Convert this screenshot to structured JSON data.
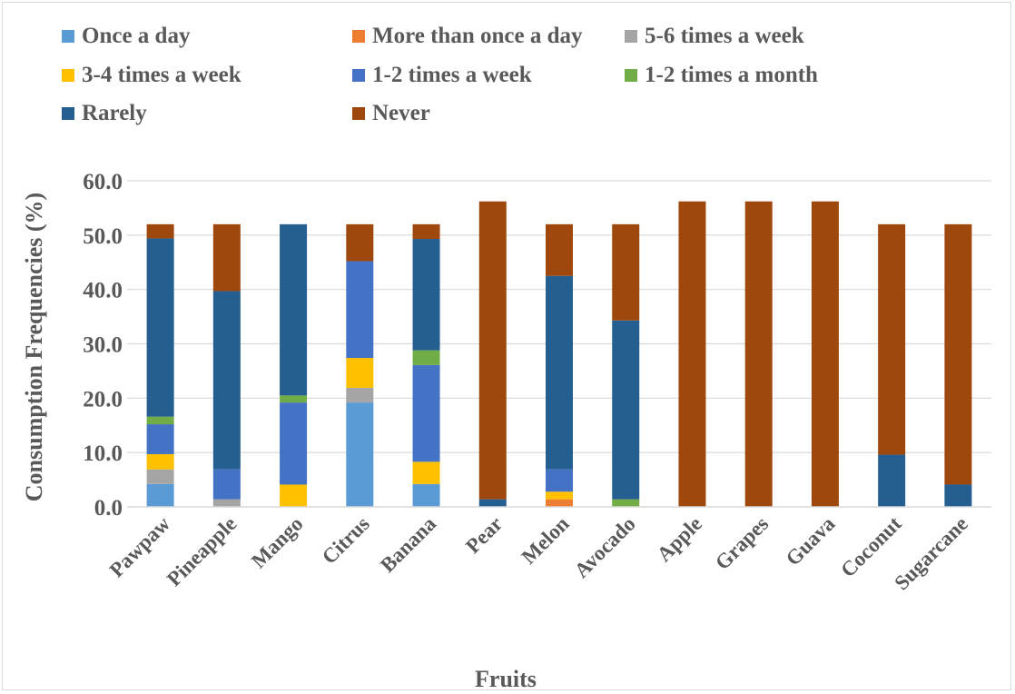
{
  "chart_data": {
    "type": "bar",
    "stacked": true,
    "xlabel": "Fruits",
    "ylabel": "Consumption Frequencies (%)",
    "ylim": [
      0,
      60
    ],
    "yticks": [
      "0.0",
      "10.0",
      "20.0",
      "30.0",
      "40.0",
      "50.0",
      "60.0"
    ],
    "grid": true,
    "legend_position": "top",
    "categories": [
      "Pawpaw",
      "Pineapple",
      "Mango",
      "Citrus",
      "Banana",
      "Pear",
      "Melon",
      "Avocado",
      "Apple",
      "Grapes",
      "Guava",
      "Coconut",
      "Sugarcane"
    ],
    "series": [
      {
        "name": "Once a day",
        "color": "#5b9bd5",
        "values": [
          4.2,
          0,
          0,
          19.2,
          4.2,
          0,
          0,
          0,
          0,
          0,
          0,
          0,
          0
        ]
      },
      {
        "name": "More than once a day",
        "color": "#ed7d31",
        "values": [
          0,
          0,
          0,
          0,
          0,
          0,
          1.4,
          0,
          0,
          0,
          0,
          0,
          0
        ]
      },
      {
        "name": "5-6 times a week",
        "color": "#a5a5a5",
        "values": [
          2.7,
          1.4,
          0,
          2.7,
          0,
          0,
          0,
          0,
          0,
          0,
          0,
          0,
          0
        ]
      },
      {
        "name": "3-4 times a week",
        "color": "#ffc000",
        "values": [
          2.8,
          0,
          4.1,
          5.5,
          4.1,
          0,
          1.4,
          0,
          0,
          0,
          0,
          0,
          0
        ]
      },
      {
        "name": "1-2 times a week",
        "color": "#4472c4",
        "values": [
          5.5,
          5.5,
          15.1,
          17.8,
          17.8,
          0,
          4.1,
          0,
          0,
          0,
          0,
          0,
          0
        ]
      },
      {
        "name": "1-2 times a month",
        "color": "#70ad47",
        "values": [
          1.4,
          0,
          1.3,
          0,
          2.7,
          0,
          0,
          1.4,
          0,
          0,
          0,
          0,
          0
        ]
      },
      {
        "name": "Rarely",
        "color": "#255e91",
        "values": [
          32.8,
          32.8,
          31.5,
          0,
          20.5,
          1.4,
          35.6,
          32.9,
          0,
          0,
          0,
          9.6,
          4.1
        ]
      },
      {
        "name": "Never",
        "color": "#9e480e",
        "values": [
          2.6,
          12.3,
          0,
          6.8,
          2.7,
          54.8,
          9.5,
          17.7,
          56.2,
          56.2,
          56.2,
          42.4,
          47.9
        ]
      }
    ]
  }
}
